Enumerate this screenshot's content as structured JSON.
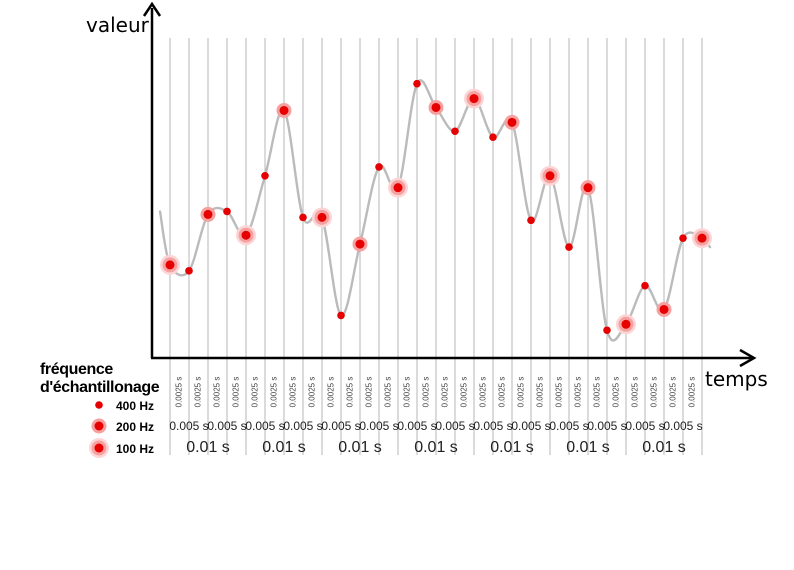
{
  "axes": {
    "x_label": "temps",
    "y_label": "valeur"
  },
  "legend": {
    "title_line1": "fréquence",
    "title_line2": "d'échantillonage",
    "items": [
      {
        "label": "400 Hz",
        "color": "#e60000"
      },
      {
        "label": "200 Hz",
        "color": "#e60000"
      },
      {
        "label": "100 Hz",
        "color": "#e60000"
      }
    ]
  },
  "time_scale": {
    "small_label": "0.0025 s",
    "mid_label": "0.005 s",
    "big_label": "0.01 s",
    "small_count": 28,
    "mid_count": 14,
    "big_count": 7
  },
  "chart_data": {
    "type": "line",
    "x_unit": "s",
    "sample_period_s": 0.0025,
    "signal_color": "#bbbbbb",
    "sample_color": "#e60000",
    "samples": [
      {
        "t": 0.0,
        "value": 0.3,
        "rate_hz": 100
      },
      {
        "t": 0.0025,
        "value": 0.28,
        "rate_hz": 400
      },
      {
        "t": 0.005,
        "value": 0.47,
        "rate_hz": 200
      },
      {
        "t": 0.0075,
        "value": 0.48,
        "rate_hz": 400
      },
      {
        "t": 0.01,
        "value": 0.4,
        "rate_hz": 100
      },
      {
        "t": 0.0125,
        "value": 0.6,
        "rate_hz": 400
      },
      {
        "t": 0.015,
        "value": 0.82,
        "rate_hz": 200
      },
      {
        "t": 0.0175,
        "value": 0.46,
        "rate_hz": 400
      },
      {
        "t": 0.02,
        "value": 0.46,
        "rate_hz": 100
      },
      {
        "t": 0.0225,
        "value": 0.13,
        "rate_hz": 400
      },
      {
        "t": 0.025,
        "value": 0.37,
        "rate_hz": 200
      },
      {
        "t": 0.0275,
        "value": 0.63,
        "rate_hz": 400
      },
      {
        "t": 0.03,
        "value": 0.56,
        "rate_hz": 100
      },
      {
        "t": 0.0325,
        "value": 0.91,
        "rate_hz": 400
      },
      {
        "t": 0.035,
        "value": 0.83,
        "rate_hz": 200
      },
      {
        "t": 0.0375,
        "value": 0.75,
        "rate_hz": 400
      },
      {
        "t": 0.04,
        "value": 0.86,
        "rate_hz": 100
      },
      {
        "t": 0.0425,
        "value": 0.73,
        "rate_hz": 400
      },
      {
        "t": 0.045,
        "value": 0.78,
        "rate_hz": 200
      },
      {
        "t": 0.0475,
        "value": 0.45,
        "rate_hz": 400
      },
      {
        "t": 0.05,
        "value": 0.6,
        "rate_hz": 100
      },
      {
        "t": 0.0525,
        "value": 0.36,
        "rate_hz": 400
      },
      {
        "t": 0.055,
        "value": 0.56,
        "rate_hz": 200
      },
      {
        "t": 0.0575,
        "value": 0.08,
        "rate_hz": 400
      },
      {
        "t": 0.06,
        "value": 0.1,
        "rate_hz": 100
      },
      {
        "t": 0.0625,
        "value": 0.23,
        "rate_hz": 400
      },
      {
        "t": 0.065,
        "value": 0.15,
        "rate_hz": 200
      },
      {
        "t": 0.0675,
        "value": 0.39,
        "rate_hz": 400
      },
      {
        "t": 0.07,
        "value": 0.39,
        "rate_hz": 100
      }
    ]
  }
}
